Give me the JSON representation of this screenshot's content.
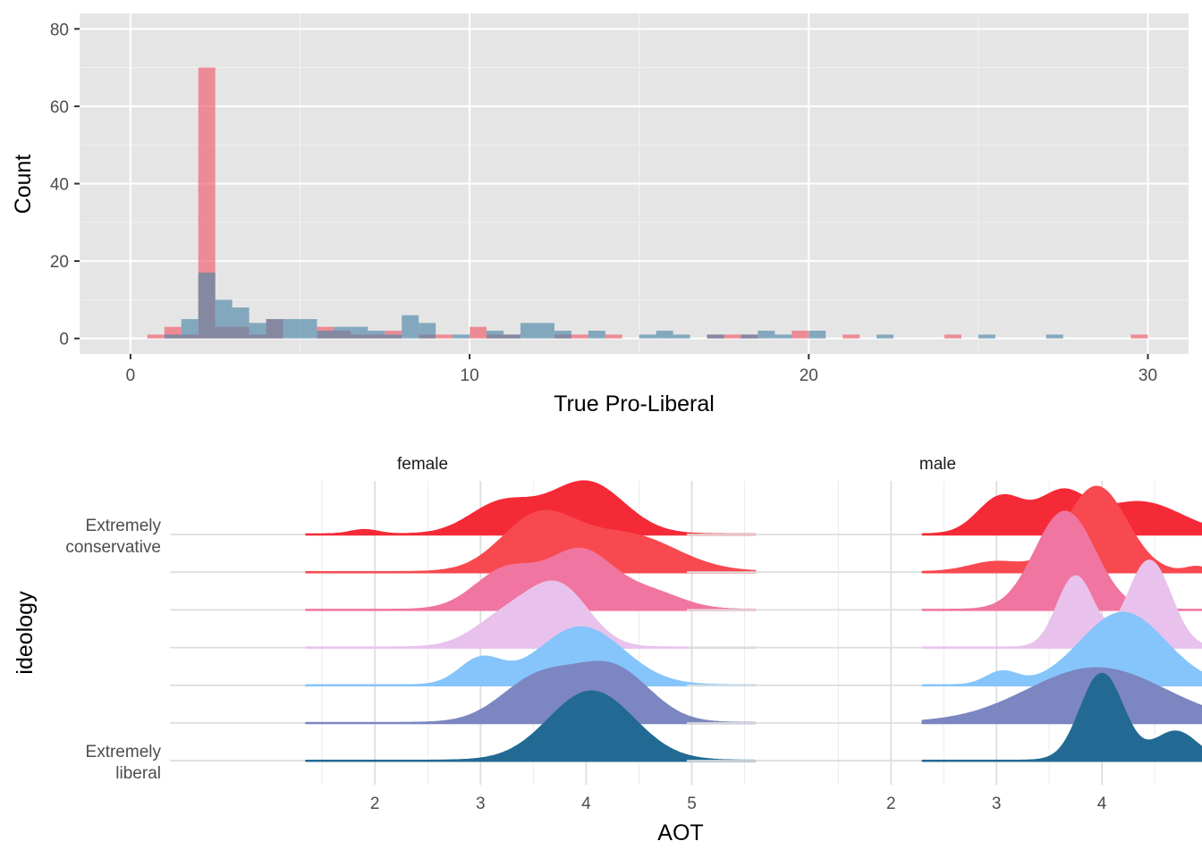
{
  "chart_data": [
    {
      "type": "histogram",
      "xlabel": "True Pro-Liberal",
      "ylabel": "Count",
      "xlim": [
        -1.5,
        31.2
      ],
      "ylim": [
        -4,
        84
      ],
      "x_ticks": [
        0,
        10,
        20,
        30
      ],
      "y_ticks": [
        0,
        20,
        40,
        60,
        80
      ],
      "grid": true,
      "legend": "none",
      "bin_width": 0.5,
      "colors": {
        "red": "#ef5a6a",
        "blue": "#4f87a8"
      },
      "series": [
        {
          "color": "red",
          "bins": [
            [
              0.5,
              1
            ],
            [
              1.0,
              3
            ],
            [
              1.5,
              1
            ],
            [
              2.0,
              70
            ],
            [
              2.5,
              3
            ],
            [
              3.0,
              3
            ],
            [
              3.5,
              1
            ],
            [
              4.0,
              5
            ],
            [
              5.5,
              3
            ],
            [
              6.0,
              2
            ],
            [
              6.5,
              1
            ],
            [
              7.0,
              1
            ],
            [
              7.5,
              2
            ],
            [
              8.5,
              1
            ],
            [
              9.0,
              1
            ],
            [
              10.0,
              3
            ],
            [
              10.5,
              1
            ],
            [
              11.0,
              1
            ],
            [
              12.5,
              1
            ],
            [
              13.0,
              1
            ],
            [
              14.0,
              1
            ],
            [
              17.0,
              1
            ],
            [
              17.5,
              1
            ],
            [
              18.0,
              1
            ],
            [
              19.5,
              2
            ],
            [
              21.0,
              1
            ],
            [
              24.0,
              1
            ],
            [
              29.5,
              1
            ]
          ]
        },
        {
          "color": "blue",
          "bins": [
            [
              1.0,
              1
            ],
            [
              1.5,
              5
            ],
            [
              2.0,
              17
            ],
            [
              2.5,
              10
            ],
            [
              3.0,
              8
            ],
            [
              3.5,
              4
            ],
            [
              4.0,
              5
            ],
            [
              4.5,
              5
            ],
            [
              5.0,
              5
            ],
            [
              5.5,
              2
            ],
            [
              6.0,
              3
            ],
            [
              6.5,
              3
            ],
            [
              7.0,
              2
            ],
            [
              7.5,
              1
            ],
            [
              8.0,
              6
            ],
            [
              8.5,
              4
            ],
            [
              9.5,
              1
            ],
            [
              10.5,
              2
            ],
            [
              11.0,
              1
            ],
            [
              11.5,
              4
            ],
            [
              12.0,
              4
            ],
            [
              12.5,
              2
            ],
            [
              13.5,
              2
            ],
            [
              15.0,
              1
            ],
            [
              15.5,
              2
            ],
            [
              16.0,
              1
            ],
            [
              17.0,
              1
            ],
            [
              18.0,
              1
            ],
            [
              18.5,
              2
            ],
            [
              19.0,
              1
            ],
            [
              20.0,
              2
            ],
            [
              22.0,
              1
            ],
            [
              25.0,
              1
            ],
            [
              27.0,
              1
            ]
          ]
        }
      ]
    },
    {
      "type": "ridgeline",
      "xlabel": "AOT",
      "ylabel": "ideology",
      "x_ticks": [
        2,
        3,
        4,
        5
      ],
      "y_tick_labels": [
        {
          "level": 0,
          "text": "Extremely\nconservative"
        },
        {
          "level": 6,
          "text": "Extremely\nliberal"
        }
      ],
      "facets": [
        "female",
        "male"
      ],
      "levels": 7,
      "colors": [
        "#f52a37",
        "#f7494f",
        "#f075a0",
        "#e8c2ec",
        "#86c5fb",
        "#7c86c0",
        "#226a93"
      ],
      "series": [
        {
          "facet": "female",
          "range": [
            1.35,
            5.6
          ],
          "densities": [
            {
              "level": 0,
              "peak": 0.33,
              "components": [
                [
                  1.9,
                  0.13,
                  0.05
                ],
                [
                  3.2,
                  0.3,
                  0.35
                ],
                [
                  4.0,
                  0.35,
                  0.6
                ]
              ]
            },
            {
              "level": 1,
              "peak": 0.38,
              "components": [
                [
                  3.55,
                  0.35,
                  0.6
                ],
                [
                  4.4,
                  0.45,
                  0.4
                ]
              ]
            },
            {
              "level": 2,
              "peak": 0.38,
              "components": [
                [
                  3.25,
                  0.3,
                  0.35
                ],
                [
                  3.95,
                  0.3,
                  0.5
                ],
                [
                  4.6,
                  0.3,
                  0.15
                ]
              ]
            },
            {
              "level": 3,
              "peak": 0.41,
              "components": [
                [
                  3.25,
                  0.3,
                  0.35
                ],
                [
                  3.75,
                  0.28,
                  0.65
                ]
              ]
            },
            {
              "level": 4,
              "peak": 0.36,
              "components": [
                [
                  3.0,
                  0.2,
                  0.3
                ],
                [
                  3.95,
                  0.4,
                  0.7
                ]
              ]
            },
            {
              "level": 5,
              "peak": 0.38,
              "components": [
                [
                  3.55,
                  0.35,
                  0.45
                ],
                [
                  4.25,
                  0.35,
                  0.55
                ]
              ]
            },
            {
              "level": 6,
              "peak": 0.43,
              "components": [
                [
                  4.05,
                  0.4,
                  1.0
                ]
              ]
            }
          ]
        },
        {
          "facet": "male",
          "range": [
            2.3,
            5.5
          ],
          "densities": [
            {
              "level": 0,
              "peak": 0.28,
              "components": [
                [
                  3.05,
                  0.22,
                  0.35
                ],
                [
                  3.62,
                  0.22,
                  0.35
                ],
                [
                  4.35,
                  0.4,
                  0.3
                ]
              ]
            },
            {
              "level": 1,
              "peak": 0.53,
              "components": [
                [
                  3.0,
                  0.25,
                  0.1
                ],
                [
                  3.95,
                  0.28,
                  0.85
                ],
                [
                  4.9,
                  0.1,
                  0.05
                ]
              ]
            },
            {
              "level": 2,
              "peak": 0.61,
              "components": [
                [
                  3.65,
                  0.28,
                  1.0
                ]
              ]
            },
            {
              "level": 3,
              "peak": 0.54,
              "components": [
                [
                  3.75,
                  0.17,
                  0.45
                ],
                [
                  4.45,
                  0.2,
                  0.55
                ]
              ]
            },
            {
              "level": 4,
              "peak": 0.45,
              "components": [
                [
                  3.05,
                  0.15,
                  0.15
                ],
                [
                  4.2,
                  0.4,
                  0.85
                ]
              ]
            },
            {
              "level": 5,
              "peak": 0.34,
              "components": [
                [
                  3.95,
                  0.65,
                  1.0
                ]
              ]
            },
            {
              "level": 6,
              "peak": 0.54,
              "components": [
                [
                  4.0,
                  0.2,
                  0.75
                ],
                [
                  4.7,
                  0.2,
                  0.25
                ]
              ]
            }
          ]
        }
      ]
    }
  ]
}
